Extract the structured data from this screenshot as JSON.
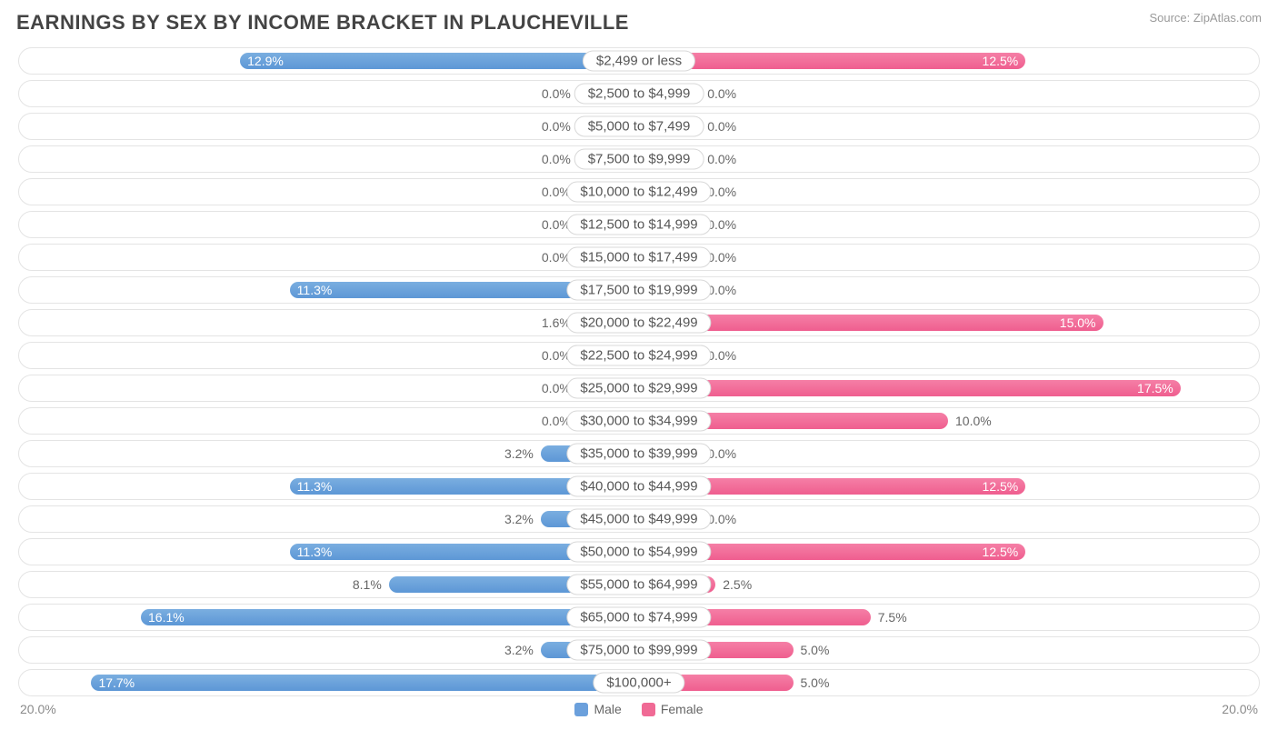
{
  "title": "EARNINGS BY SEX BY INCOME BRACKET IN PLAUCHEVILLE",
  "source": "Source: ZipAtlas.com",
  "chart": {
    "type": "diverging-bar",
    "max_pct": 20.0,
    "axis_left_label": "20.0%",
    "axis_right_label": "20.0%",
    "male_color": "#6ba0dc",
    "female_color": "#f06a95",
    "row_bg": "#ffffff",
    "row_border": "#e4e4e4",
    "min_bar_pct": 2.0,
    "inside_label_threshold_pct": 11.0,
    "rows": [
      {
        "category": "$2,499 or less",
        "male": 12.9,
        "female": 12.5
      },
      {
        "category": "$2,500 to $4,999",
        "male": 0.0,
        "female": 0.0
      },
      {
        "category": "$5,000 to $7,499",
        "male": 0.0,
        "female": 0.0
      },
      {
        "category": "$7,500 to $9,999",
        "male": 0.0,
        "female": 0.0
      },
      {
        "category": "$10,000 to $12,499",
        "male": 0.0,
        "female": 0.0
      },
      {
        "category": "$12,500 to $14,999",
        "male": 0.0,
        "female": 0.0
      },
      {
        "category": "$15,000 to $17,499",
        "male": 0.0,
        "female": 0.0
      },
      {
        "category": "$17,500 to $19,999",
        "male": 11.3,
        "female": 0.0
      },
      {
        "category": "$20,000 to $22,499",
        "male": 1.6,
        "female": 15.0
      },
      {
        "category": "$22,500 to $24,999",
        "male": 0.0,
        "female": 0.0
      },
      {
        "category": "$25,000 to $29,999",
        "male": 0.0,
        "female": 17.5
      },
      {
        "category": "$30,000 to $34,999",
        "male": 0.0,
        "female": 10.0
      },
      {
        "category": "$35,000 to $39,999",
        "male": 3.2,
        "female": 0.0
      },
      {
        "category": "$40,000 to $44,999",
        "male": 11.3,
        "female": 12.5
      },
      {
        "category": "$45,000 to $49,999",
        "male": 3.2,
        "female": 0.0
      },
      {
        "category": "$50,000 to $54,999",
        "male": 11.3,
        "female": 12.5
      },
      {
        "category": "$55,000 to $64,999",
        "male": 8.1,
        "female": 2.5
      },
      {
        "category": "$65,000 to $74,999",
        "male": 16.1,
        "female": 7.5
      },
      {
        "category": "$75,000 to $99,999",
        "male": 3.2,
        "female": 5.0
      },
      {
        "category": "$100,000+",
        "male": 17.7,
        "female": 5.0
      }
    ]
  },
  "legend": {
    "male": "Male",
    "female": "Female"
  }
}
